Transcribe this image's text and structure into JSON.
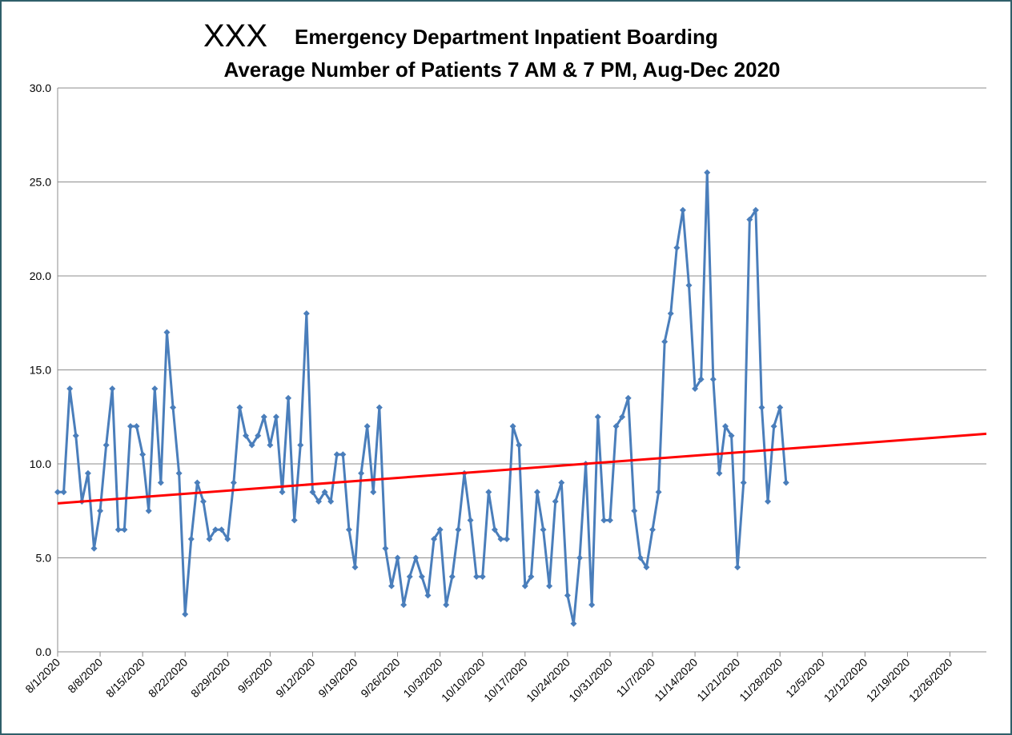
{
  "chart_data": {
    "type": "line",
    "title_prefix": "XXX",
    "title": "Emergency Department Inpatient Boarding",
    "subtitle": "Average Number of Patients 7 AM & 7 PM, Aug-Dec 2020",
    "x": [
      "8/1/2020",
      "8/2/2020",
      "8/3/2020",
      "8/4/2020",
      "8/5/2020",
      "8/6/2020",
      "8/7/2020",
      "8/8/2020",
      "8/9/2020",
      "8/10/2020",
      "8/11/2020",
      "8/12/2020",
      "8/13/2020",
      "8/14/2020",
      "8/15/2020",
      "8/16/2020",
      "8/17/2020",
      "8/18/2020",
      "8/19/2020",
      "8/20/2020",
      "8/21/2020",
      "8/22/2020",
      "8/23/2020",
      "8/24/2020",
      "8/25/2020",
      "8/26/2020",
      "8/27/2020",
      "8/28/2020",
      "8/29/2020",
      "8/30/2020",
      "8/31/2020",
      "9/1/2020",
      "9/2/2020",
      "9/3/2020",
      "9/4/2020",
      "9/5/2020",
      "9/6/2020",
      "9/7/2020",
      "9/8/2020",
      "9/9/2020",
      "9/10/2020",
      "9/11/2020",
      "9/12/2020",
      "9/13/2020",
      "9/14/2020",
      "9/15/2020",
      "9/16/2020",
      "9/17/2020",
      "9/18/2020",
      "9/19/2020",
      "9/20/2020",
      "9/21/2020",
      "9/22/2020",
      "9/23/2020",
      "9/24/2020",
      "9/25/2020",
      "9/26/2020",
      "9/27/2020",
      "9/28/2020",
      "9/29/2020",
      "9/30/2020",
      "10/1/2020",
      "10/2/2020",
      "10/3/2020",
      "10/4/2020",
      "10/5/2020",
      "10/6/2020",
      "10/7/2020",
      "10/8/2020",
      "10/9/2020",
      "10/10/2020",
      "10/11/2020",
      "10/12/2020",
      "10/13/2020",
      "10/14/2020",
      "10/15/2020",
      "10/16/2020",
      "10/17/2020",
      "10/18/2020",
      "10/19/2020",
      "10/20/2020",
      "10/21/2020",
      "10/22/2020",
      "10/23/2020",
      "10/24/2020",
      "10/25/2020",
      "10/26/2020",
      "10/27/2020",
      "10/28/2020",
      "10/29/2020",
      "10/30/2020",
      "10/31/2020",
      "11/1/2020",
      "11/2/2020",
      "11/3/2020",
      "11/4/2020",
      "11/5/2020",
      "11/6/2020",
      "11/7/2020",
      "11/8/2020",
      "11/9/2020",
      "11/10/2020",
      "11/11/2020",
      "11/12/2020",
      "11/13/2020",
      "11/14/2020",
      "11/15/2020",
      "11/16/2020",
      "11/17/2020",
      "11/18/2020",
      "11/19/2020",
      "11/20/2020",
      "11/21/2020",
      "11/22/2020",
      "11/23/2020",
      "11/24/2020",
      "11/25/2020",
      "11/26/2020",
      "11/27/2020",
      "11/28/2020",
      "11/29/2020"
    ],
    "series": [
      {
        "color": "#4a7ebb",
        "values": [
          8.5,
          8.5,
          14,
          11.5,
          8,
          9.5,
          5.5,
          7.5,
          11,
          14,
          6.5,
          6.5,
          12,
          12,
          10.5,
          7.5,
          14,
          9,
          17,
          13,
          9.5,
          2,
          6,
          9,
          8,
          6,
          6.5,
          6.5,
          6,
          9,
          13,
          11.5,
          11,
          11.5,
          12.5,
          11,
          12.5,
          8.5,
          13.5,
          7,
          11,
          18,
          8.5,
          8,
          8.5,
          8,
          10.5,
          10.5,
          6.5,
          4.5,
          9.5,
          12,
          8.5,
          13,
          5.5,
          3.5,
          5,
          2.5,
          4,
          5,
          4,
          3,
          6,
          6.5,
          2.5,
          4,
          6.5,
          9.5,
          7,
          4,
          4,
          8.5,
          6.5,
          6,
          6,
          12,
          11,
          3.5,
          4,
          8.5,
          6.5,
          3.5,
          8,
          9,
          3,
          1.5,
          5,
          10,
          2.5,
          12.5,
          7,
          7,
          12,
          12.5,
          13.5,
          7.5,
          5,
          4.5,
          6.5,
          8.5,
          16.5,
          18,
          21.5,
          23.5,
          19.5,
          14,
          14.5,
          25.5,
          14.5,
          9.5,
          12,
          11.5,
          4.5,
          9,
          23,
          23.5,
          13,
          8,
          12,
          13,
          9
        ]
      }
    ],
    "trendline": {
      "color": "#ff0000",
      "x": [
        "8/1/2020",
        "1/1/2021"
      ],
      "values": [
        7.9,
        11.6
      ]
    },
    "xlim": [
      "8/1/2020",
      "1/1/2021"
    ],
    "xticks": [
      "8/1/2020",
      "8/8/2020",
      "8/15/2020",
      "8/22/2020",
      "8/29/2020",
      "9/5/2020",
      "9/12/2020",
      "9/19/2020",
      "9/26/2020",
      "10/3/2020",
      "10/10/2020",
      "10/17/2020",
      "10/24/2020",
      "10/31/2020",
      "11/7/2020",
      "11/14/2020",
      "11/21/2020",
      "11/28/2020",
      "12/5/2020",
      "12/12/2020",
      "12/19/2020",
      "12/26/2020"
    ],
    "ylim": [
      0,
      30
    ],
    "yticks": [
      {
        "value": 0,
        "label": "0.0"
      },
      {
        "value": 5,
        "label": "5.0"
      },
      {
        "value": 10,
        "label": "10.0"
      },
      {
        "value": 15,
        "label": "15.0"
      },
      {
        "value": 20,
        "label": "20.0"
      },
      {
        "value": 25,
        "label": "25.0"
      },
      {
        "value": 30,
        "label": "30.0"
      }
    ],
    "grid": true
  }
}
